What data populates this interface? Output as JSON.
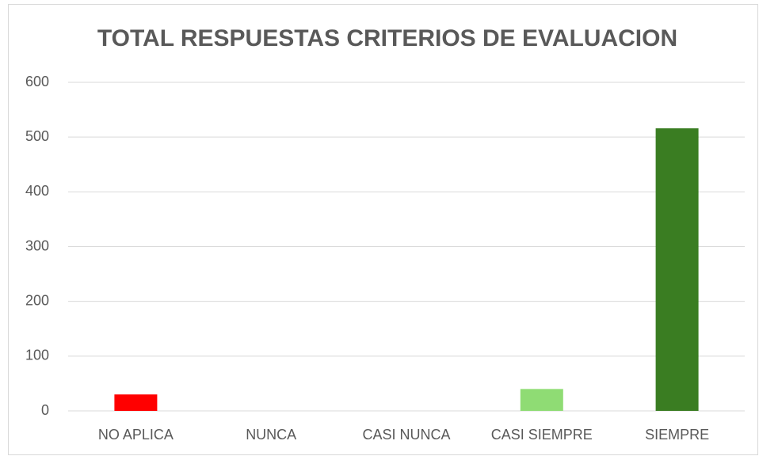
{
  "chart_data": {
    "type": "bar",
    "title": "TOTAL RESPUESTAS CRITERIOS DE EVALUACION",
    "categories": [
      "NO APLICA",
      "NUNCA",
      "CASI NUNCA",
      "CASI SIEMPRE",
      "SIEMPRE"
    ],
    "values": [
      30,
      0,
      0,
      40,
      516
    ],
    "colors": [
      "#ff0000",
      "#92d050",
      "#92d050",
      "#8fdc74",
      "#3a7d22"
    ],
    "ylim": [
      0,
      600
    ],
    "yticks": [
      0,
      100,
      200,
      300,
      400,
      500,
      600
    ],
    "grid": true
  }
}
